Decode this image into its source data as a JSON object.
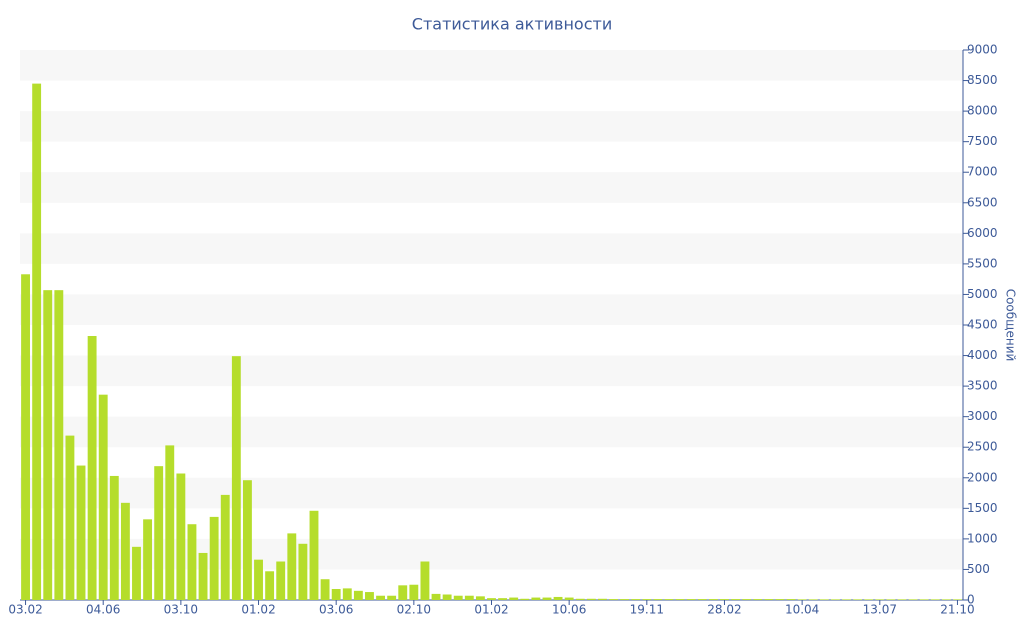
{
  "chart_data": {
    "type": "bar",
    "title": "Статистика активности",
    "y_axis_label": "Сообщений",
    "categories": [
      "03.02",
      null,
      null,
      null,
      null,
      null,
      null,
      "04.06",
      null,
      null,
      null,
      null,
      null,
      null,
      "03.10",
      null,
      null,
      null,
      null,
      null,
      null,
      "01.02",
      null,
      null,
      null,
      null,
      null,
      null,
      "03.06",
      null,
      null,
      null,
      null,
      null,
      null,
      "02.10",
      null,
      null,
      null,
      null,
      null,
      null,
      "01.02",
      null,
      null,
      null,
      null,
      null,
      null,
      "10.06",
      null,
      null,
      null,
      null,
      null,
      null,
      "19.11",
      null,
      null,
      null,
      null,
      null,
      null,
      "28.02",
      null,
      null,
      null,
      null,
      null,
      null,
      "10.04",
      null,
      null,
      null,
      null,
      null,
      null,
      "13.07",
      null,
      null,
      null,
      null,
      null,
      null,
      "21.10"
    ],
    "values": [
      5330,
      8450,
      5070,
      5070,
      2690,
      2200,
      4320,
      3360,
      2030,
      1590,
      870,
      1320,
      2190,
      2530,
      2070,
      1240,
      770,
      1360,
      1720,
      3990,
      1960,
      660,
      470,
      630,
      1090,
      920,
      1460,
      340,
      180,
      190,
      150,
      130,
      70,
      70,
      240,
      250,
      630,
      100,
      90,
      70,
      70,
      60,
      30,
      30,
      40,
      20,
      40,
      40,
      50,
      40,
      20,
      20,
      20,
      15,
      15,
      15,
      15,
      15,
      15,
      15,
      15,
      15,
      15,
      15,
      15,
      15,
      15,
      15,
      15,
      15,
      10,
      10,
      10,
      10,
      10,
      10,
      10,
      10,
      10,
      10,
      10,
      10,
      10,
      10,
      10
    ],
    "color": "#b5dd2b",
    "ylim": [
      0,
      9000
    ],
    "yticks": [
      0,
      500,
      1000,
      1500,
      2000,
      2500,
      3000,
      3500,
      4000,
      4500,
      5000,
      5500,
      6000,
      6500,
      7000,
      7500,
      8000,
      8500,
      9000
    ],
    "grid": "bands"
  }
}
